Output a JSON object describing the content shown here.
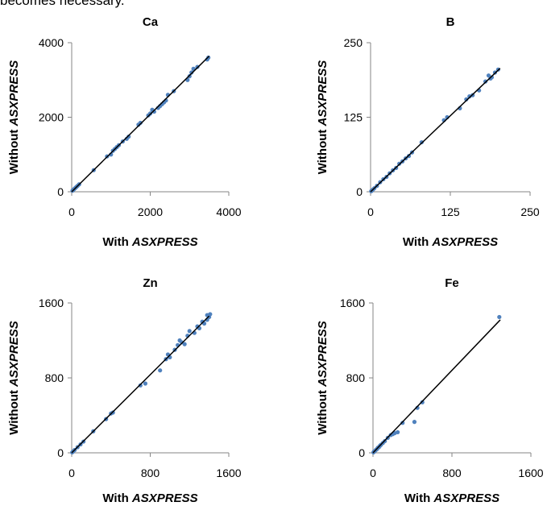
{
  "page": {
    "top_text": "becomes necessary."
  },
  "chart_data": [
    {
      "type": "scatter",
      "title": "Ca",
      "xlabel_prefix": "With ",
      "xlabel_em": "ASXPRESS",
      "ylabel_prefix": "Without ",
      "ylabel_em": "ASXPRESS",
      "xlim": [
        0,
        4000
      ],
      "ylim": [
        0,
        4000
      ],
      "xticks": [
        "0",
        "2000",
        "4000"
      ],
      "yticks": [
        "0",
        "2000",
        "4000"
      ],
      "xtick_values": [
        0,
        2000,
        4000
      ],
      "ytick_values": [
        0,
        2000,
        4000
      ],
      "fit_line": [
        [
          0,
          0
        ],
        [
          3500,
          3640
        ]
      ],
      "marker_color": "#4f81bd",
      "points": [
        [
          20,
          30
        ],
        [
          40,
          50
        ],
        [
          60,
          70
        ],
        [
          90,
          100
        ],
        [
          120,
          130
        ],
        [
          150,
          160
        ],
        [
          190,
          200
        ],
        [
          560,
          580
        ],
        [
          900,
          950
        ],
        [
          1000,
          1000
        ],
        [
          1050,
          1100
        ],
        [
          1100,
          1150
        ],
        [
          1150,
          1200
        ],
        [
          1200,
          1250
        ],
        [
          1300,
          1350
        ],
        [
          1400,
          1420
        ],
        [
          1450,
          1480
        ],
        [
          1700,
          1800
        ],
        [
          1750,
          1850
        ],
        [
          1950,
          2050
        ],
        [
          2000,
          2100
        ],
        [
          2050,
          2200
        ],
        [
          2100,
          2150
        ],
        [
          2200,
          2250
        ],
        [
          2250,
          2300
        ],
        [
          2300,
          2350
        ],
        [
          2350,
          2400
        ],
        [
          2400,
          2450
        ],
        [
          2450,
          2600
        ],
        [
          2600,
          2700
        ],
        [
          2950,
          3000
        ],
        [
          3000,
          3100
        ],
        [
          3050,
          3200
        ],
        [
          3100,
          3300
        ],
        [
          3200,
          3350
        ],
        [
          3450,
          3550
        ],
        [
          3480,
          3600
        ]
      ]
    },
    {
      "type": "scatter",
      "title": "B",
      "xlabel_prefix": "With ",
      "xlabel_em": "ASXPRESS",
      "ylabel_prefix": "Without ",
      "ylabel_em": "ASXPRESS",
      "xlim": [
        0,
        250
      ],
      "ylim": [
        0,
        250
      ],
      "xticks": [
        "0",
        "125",
        "250"
      ],
      "yticks": [
        "0",
        "125",
        "250"
      ],
      "xtick_values": [
        0,
        125,
        250
      ],
      "ytick_values": [
        0,
        125,
        250
      ],
      "fit_line": [
        [
          0,
          0
        ],
        [
          203,
          207
        ]
      ],
      "marker_color": "#4f81bd",
      "points": [
        [
          1,
          1
        ],
        [
          2,
          2
        ],
        [
          4,
          4
        ],
        [
          6,
          6
        ],
        [
          10,
          10
        ],
        [
          15,
          16
        ],
        [
          20,
          21
        ],
        [
          25,
          25
        ],
        [
          30,
          31
        ],
        [
          35,
          36
        ],
        [
          40,
          40
        ],
        [
          45,
          47
        ],
        [
          50,
          51
        ],
        [
          55,
          56
        ],
        [
          60,
          60
        ],
        [
          65,
          66
        ],
        [
          80,
          83
        ],
        [
          115,
          120
        ],
        [
          120,
          125
        ],
        [
          140,
          140
        ],
        [
          150,
          155
        ],
        [
          155,
          160
        ],
        [
          160,
          162
        ],
        [
          170,
          170
        ],
        [
          180,
          185
        ],
        [
          185,
          195
        ],
        [
          188,
          190
        ],
        [
          190,
          192
        ],
        [
          195,
          200
        ],
        [
          200,
          205
        ]
      ]
    },
    {
      "type": "scatter",
      "title": "Zn",
      "xlabel_prefix": "With ",
      "xlabel_em": "ASXPRESS",
      "ylabel_prefix": "Without ",
      "ylabel_em": "ASXPRESS",
      "xlim": [
        0,
        1600
      ],
      "ylim": [
        0,
        1600
      ],
      "xticks": [
        "0",
        "800",
        "1600"
      ],
      "yticks": [
        "0",
        "800",
        "1600"
      ],
      "xtick_values": [
        0,
        800,
        1600
      ],
      "ytick_values": [
        0,
        800,
        1600
      ],
      "fit_line": [
        [
          0,
          0
        ],
        [
          1400,
          1460
        ]
      ],
      "marker_color": "#4f81bd",
      "points": [
        [
          5,
          5
        ],
        [
          15,
          15
        ],
        [
          30,
          30
        ],
        [
          60,
          60
        ],
        [
          90,
          90
        ],
        [
          120,
          120
        ],
        [
          220,
          230
        ],
        [
          350,
          360
        ],
        [
          400,
          420
        ],
        [
          420,
          430
        ],
        [
          700,
          720
        ],
        [
          750,
          740
        ],
        [
          900,
          880
        ],
        [
          960,
          1000
        ],
        [
          980,
          1050
        ],
        [
          1000,
          1020
        ],
        [
          1050,
          1100
        ],
        [
          1080,
          1150
        ],
        [
          1100,
          1200
        ],
        [
          1120,
          1180
        ],
        [
          1150,
          1160
        ],
        [
          1180,
          1250
        ],
        [
          1200,
          1300
        ],
        [
          1250,
          1280
        ],
        [
          1280,
          1350
        ],
        [
          1300,
          1330
        ],
        [
          1330,
          1400
        ],
        [
          1350,
          1380
        ],
        [
          1380,
          1420
        ],
        [
          1400,
          1450
        ],
        [
          1410,
          1480
        ],
        [
          1380,
          1470
        ]
      ]
    },
    {
      "type": "scatter",
      "title": "Fe",
      "xlabel_prefix": "With ",
      "xlabel_em": "ASXPRESS",
      "ylabel_prefix": "Without ",
      "ylabel_em": "ASXPRESS",
      "xlim": [
        0,
        1600
      ],
      "ylim": [
        0,
        1600
      ],
      "xticks": [
        "0",
        "800",
        "1600"
      ],
      "yticks": [
        "0",
        "800",
        "1600"
      ],
      "xtick_values": [
        0,
        800,
        1600
      ],
      "ytick_values": [
        0,
        800,
        1600
      ],
      "fit_line": [
        [
          0,
          0
        ],
        [
          1290,
          1420
        ]
      ],
      "marker_color": "#4f81bd",
      "points": [
        [
          5,
          5
        ],
        [
          10,
          12
        ],
        [
          20,
          20
        ],
        [
          30,
          32
        ],
        [
          40,
          40
        ],
        [
          50,
          55
        ],
        [
          60,
          60
        ],
        [
          70,
          75
        ],
        [
          80,
          85
        ],
        [
          100,
          105
        ],
        [
          120,
          125
        ],
        [
          150,
          160
        ],
        [
          180,
          190
        ],
        [
          200,
          200
        ],
        [
          220,
          210
        ],
        [
          250,
          220
        ],
        [
          300,
          320
        ],
        [
          420,
          330
        ],
        [
          450,
          480
        ],
        [
          500,
          540
        ],
        [
          1280,
          1450
        ]
      ]
    }
  ]
}
